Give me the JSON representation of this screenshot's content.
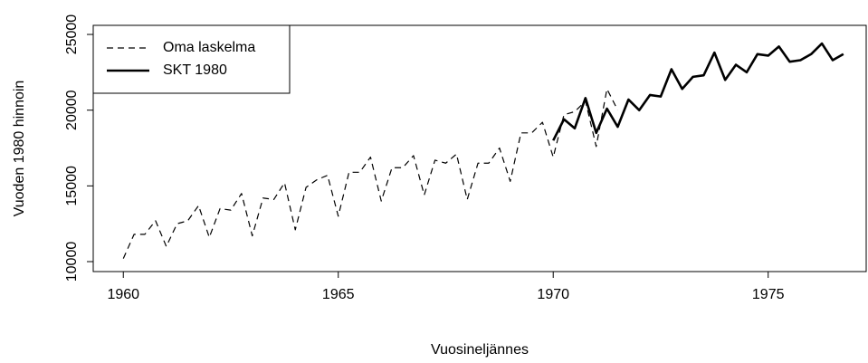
{
  "chart_data": {
    "type": "line",
    "xlabel": "Vuosineljännes",
    "ylabel": "Vuoden 1980 hinnoin",
    "x": [
      1960,
      1960.25,
      1960.5,
      1960.75,
      1961,
      1961.25,
      1961.5,
      1961.75,
      1962,
      1962.25,
      1962.5,
      1962.75,
      1963,
      1963.25,
      1963.5,
      1963.75,
      1964,
      1964.25,
      1964.5,
      1964.75,
      1965,
      1965.25,
      1965.5,
      1965.75,
      1966,
      1966.25,
      1966.5,
      1966.75,
      1967,
      1967.25,
      1967.5,
      1967.75,
      1968,
      1968.25,
      1968.5,
      1968.75,
      1969,
      1969.25,
      1969.5,
      1969.75,
      1970,
      1970.25,
      1970.5,
      1970.75,
      1971,
      1971.25,
      1971.5,
      1971.75,
      1972,
      1972.25,
      1972.5,
      1972.75,
      1973,
      1973.25,
      1973.5,
      1973.75,
      1974,
      1974.25,
      1974.5,
      1974.75,
      1975,
      1975.25,
      1975.5,
      1975.75,
      1976,
      1976.25,
      1976.5,
      1976.75
    ],
    "series": [
      {
        "name": "Oma laskelma",
        "color": "#000000",
        "dash": true,
        "values": [
          10200,
          11800,
          11800,
          12700,
          11000,
          12500,
          12700,
          13700,
          11600,
          13500,
          13400,
          14500,
          11700,
          14200,
          14100,
          15200,
          12100,
          14900,
          15400,
          15700,
          13000,
          15900,
          15900,
          16900,
          14000,
          16200,
          16200,
          17000,
          14400,
          16700,
          16500,
          17100,
          14100,
          16500,
          16500,
          17500,
          15300,
          18500,
          18500,
          19200,
          16900,
          19700,
          19900,
          20600,
          17600,
          21400,
          20000,
          null,
          null,
          null,
          null,
          null,
          null,
          null,
          null,
          null,
          null,
          null,
          null,
          null,
          null,
          null,
          null,
          null,
          null,
          null,
          null,
          null
        ]
      },
      {
        "name": "SKT 1980",
        "color": "#000000",
        "dash": false,
        "values": [
          null,
          null,
          null,
          null,
          null,
          null,
          null,
          null,
          null,
          null,
          null,
          null,
          null,
          null,
          null,
          null,
          null,
          null,
          null,
          null,
          null,
          null,
          null,
          null,
          null,
          null,
          null,
          null,
          null,
          null,
          null,
          null,
          null,
          null,
          null,
          null,
          null,
          null,
          null,
          null,
          18000,
          19400,
          18800,
          20800,
          18500,
          20100,
          18900,
          20700,
          20000,
          21000,
          20900,
          22700,
          21400,
          22200,
          22300,
          23800,
          22000,
          23000,
          22500,
          23700,
          23600,
          24200,
          23200,
          23300,
          23700,
          24400,
          23300,
          23700
        ]
      }
    ],
    "xlim": [
      1959.3,
      1977.28
    ],
    "ylim": [
      9343,
      25600
    ],
    "xticks": [
      1960,
      1965,
      1970,
      1975
    ],
    "yticks": [
      10000,
      15000,
      20000,
      25000
    ],
    "legend": "top-left"
  }
}
